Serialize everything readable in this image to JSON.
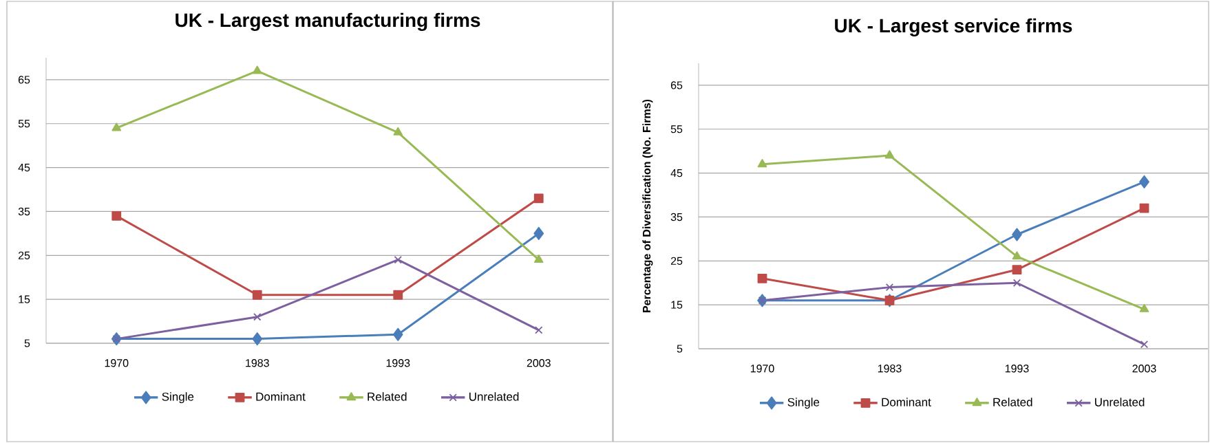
{
  "chart_data": [
    {
      "type": "line",
      "title": "UK - Largest manufacturing firms",
      "categories": [
        "1970",
        "1983",
        "1993",
        "2003"
      ],
      "ylim": [
        5,
        70
      ],
      "yticks": [
        5,
        15,
        25,
        35,
        45,
        55,
        65
      ],
      "grid": "y",
      "legend": "bottom",
      "series": [
        {
          "name": "Single",
          "color": "#4a7ebb",
          "marker": "diamond",
          "values": [
            6,
            6,
            7,
            30
          ]
        },
        {
          "name": "Dominant",
          "color": "#be4b48",
          "marker": "square",
          "values": [
            34,
            16,
            16,
            38
          ]
        },
        {
          "name": "Related",
          "color": "#98b954",
          "marker": "triangle",
          "values": [
            54,
            67,
            53,
            24
          ]
        },
        {
          "name": "Unrelated",
          "color": "#7d60a0",
          "marker": "cross",
          "values": [
            6,
            11,
            24,
            8
          ]
        }
      ]
    },
    {
      "type": "line",
      "title": "UK - Largest service firms",
      "ylabel": "Percentage of Diversification (No. Firms)",
      "categories": [
        "1970",
        "1983",
        "1993",
        "2003"
      ],
      "ylim": [
        5,
        70
      ],
      "yticks": [
        5,
        15,
        25,
        35,
        45,
        55,
        65
      ],
      "grid": "y",
      "legend": "bottom",
      "series": [
        {
          "name": "Single",
          "color": "#4a7ebb",
          "marker": "diamond",
          "values": [
            16,
            16,
            31,
            43
          ]
        },
        {
          "name": "Dominant",
          "color": "#be4b48",
          "marker": "square",
          "values": [
            21,
            16,
            23,
            37
          ]
        },
        {
          "name": "Related",
          "color": "#98b954",
          "marker": "triangle",
          "values": [
            47,
            49,
            26,
            14
          ]
        },
        {
          "name": "Unrelated",
          "color": "#7d60a0",
          "marker": "cross",
          "values": [
            16,
            19,
            20,
            6
          ]
        }
      ]
    }
  ]
}
